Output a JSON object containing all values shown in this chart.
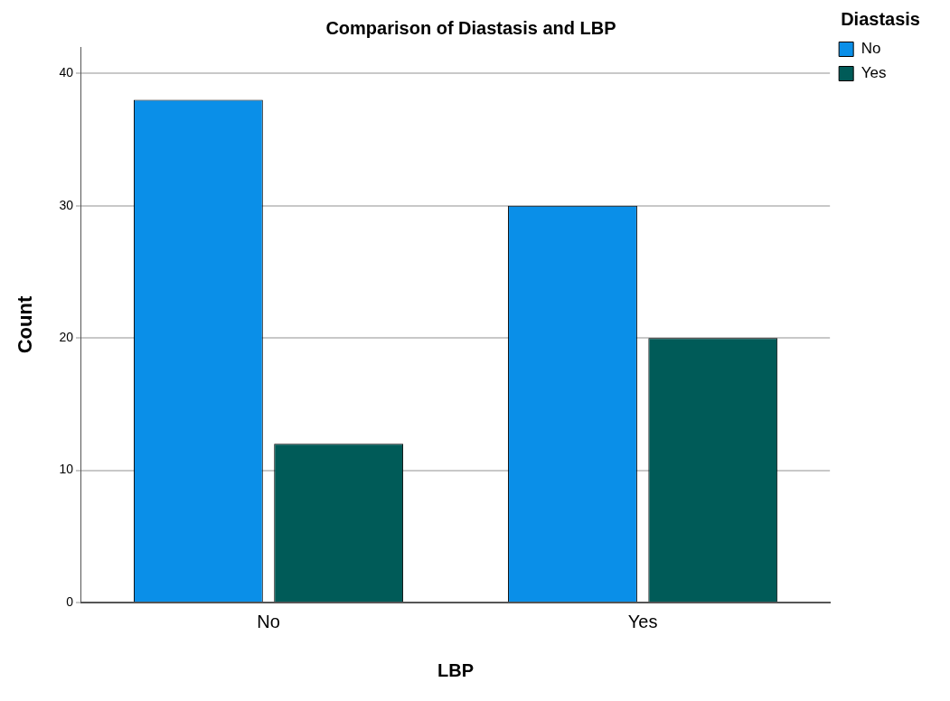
{
  "chart_data": {
    "type": "bar",
    "title": "Comparison of Diastasis and LBP",
    "xlabel": "LBP",
    "ylabel": "Count",
    "legend_title": "Diastasis",
    "categories": [
      "No",
      "Yes"
    ],
    "series": [
      {
        "name": "No",
        "color": "#0a8fe8",
        "values": [
          38,
          30
        ]
      },
      {
        "name": "Yes",
        "color": "#005b58",
        "values": [
          12,
          20
        ]
      }
    ],
    "ylim": [
      0,
      42
    ],
    "yticks": [
      0,
      10,
      20,
      30,
      40
    ],
    "grid": "y",
    "legend": "top right"
  }
}
